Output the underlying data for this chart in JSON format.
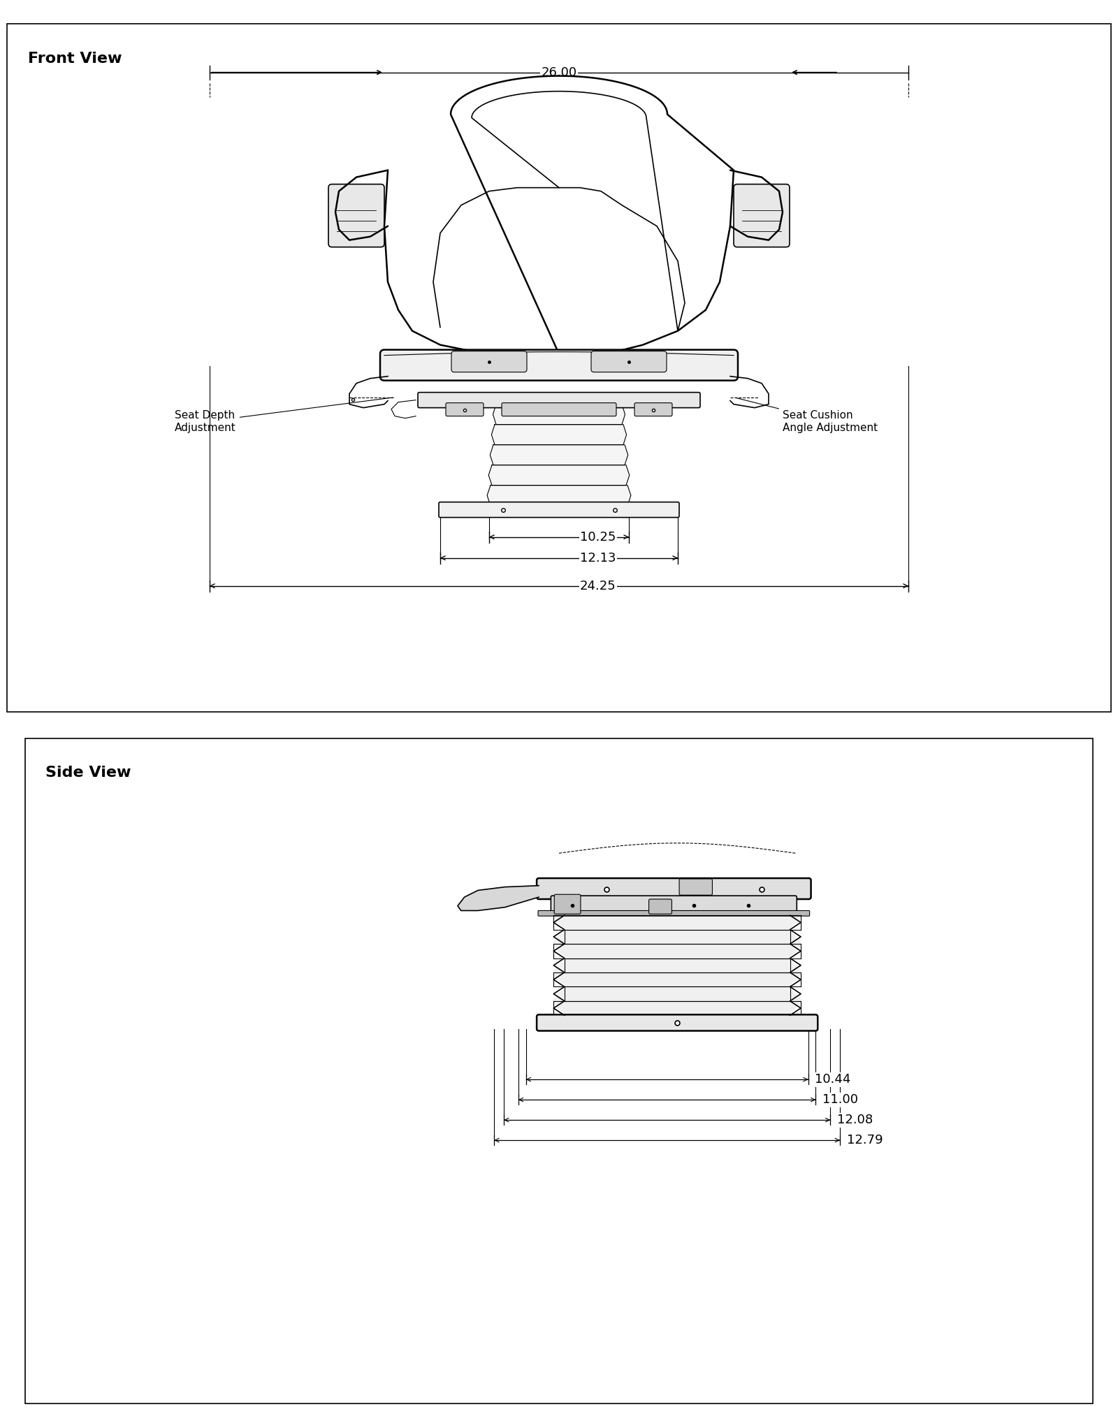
{
  "title_front": "Front View",
  "title_side": "Side View",
  "bg_color": "#ffffff",
  "line_color": "#000000",
  "dim_color": "#000000",
  "front_dims": {
    "top_width": "26.00",
    "base_inner": "10.25",
    "base_mid": "12.13",
    "base_outer": "24.25"
  },
  "side_dims": {
    "d1": "10.44",
    "d2": "11.00",
    "d3": "12.08",
    "d4": "12.79"
  },
  "labels": {
    "seat_depth": "Seat Depth\nAdjustment",
    "seat_cushion": "Seat Cushion\nAngle Adjustment"
  },
  "title_fontsize": 16,
  "dim_fontsize": 13,
  "label_fontsize": 11
}
